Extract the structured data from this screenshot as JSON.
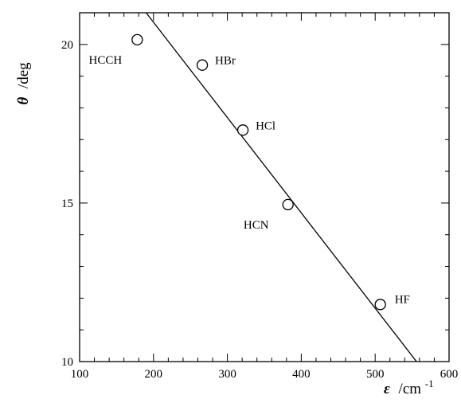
{
  "chart_data": {
    "type": "scatter",
    "title": "",
    "xlabel": {
      "symbol": "ε",
      "unit": "/cm",
      "exponent": "-1"
    },
    "ylabel": {
      "symbol": "θ",
      "unit": "/deg"
    },
    "xlim": [
      100,
      600
    ],
    "ylim": [
      10,
      21
    ],
    "x_ticks": [
      100,
      200,
      300,
      400,
      500,
      600
    ],
    "y_ticks": [
      10,
      15,
      20
    ],
    "grid": false,
    "legend": "none",
    "points": [
      {
        "label": "HCCH",
        "x": 178,
        "y": 20.15,
        "label_side": "below-left"
      },
      {
        "label": "HBr",
        "x": 266,
        "y": 19.35,
        "label_side": "right"
      },
      {
        "label": "HCl",
        "x": 321,
        "y": 17.3,
        "label_side": "right"
      },
      {
        "label": "HCN",
        "x": 382,
        "y": 14.95,
        "label_side": "below-left"
      },
      {
        "label": "HF",
        "x": 507,
        "y": 11.8,
        "label_side": "above-right"
      }
    ],
    "fit_line": {
      "x1": 190,
      "y1": 21.0,
      "x2": 556,
      "y2": 10.0
    },
    "colors": {
      "axes": "#000000",
      "marker_fill": "#ffffff",
      "line": "#000000"
    }
  }
}
